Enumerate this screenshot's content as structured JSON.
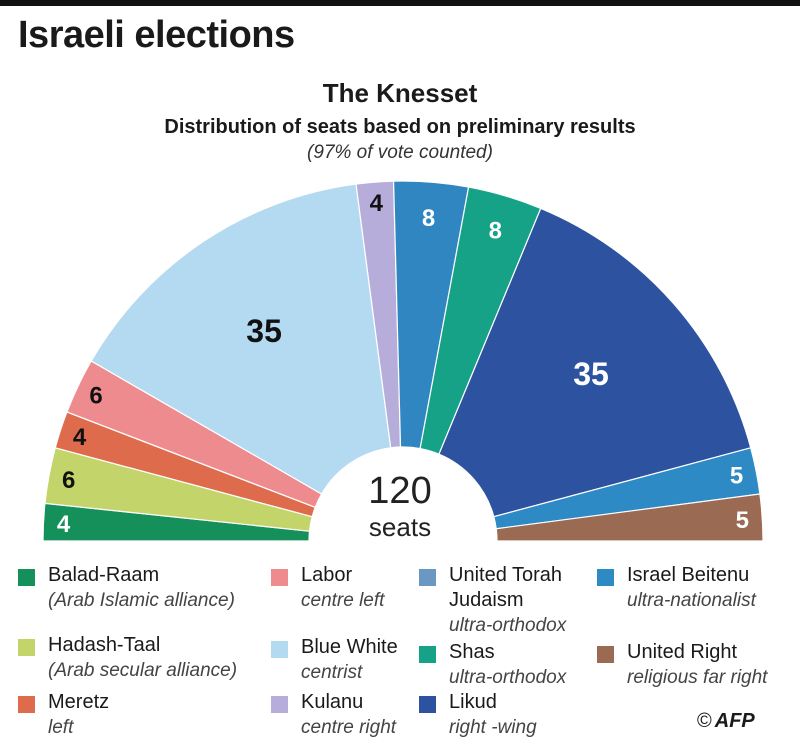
{
  "header": {
    "title": "Israeli elections"
  },
  "chart_data": {
    "type": "pie",
    "shape": "semicircle",
    "title": "The Knesset",
    "subtitle": "Distribution of seats based on preliminary results",
    "note": "(97% of vote counted)",
    "total_label": "120",
    "total_unit": "seats",
    "total": 120,
    "order": "counter-clockwise from left",
    "series": [
      {
        "name": "Balad-Raam",
        "desc": "(Arab Islamic alliance)",
        "value": 4,
        "color": "#15905a",
        "label_color": "#ffffff"
      },
      {
        "name": "Hadash-Taal",
        "desc": "(Arab secular alliance)",
        "value": 6,
        "color": "#c3d46a",
        "label_color": "#111111"
      },
      {
        "name": "Meretz",
        "desc": "left",
        "value": 4,
        "color": "#df6b4d",
        "label_color": "#111111"
      },
      {
        "name": "Labor",
        "desc": "centre left",
        "value": 6,
        "color": "#ee8b8e",
        "label_color": "#111111"
      },
      {
        "name": "Blue White",
        "desc": "centrist",
        "value": 35,
        "color": "#b4daf1",
        "label_color": "#111111"
      },
      {
        "name": "Kulanu",
        "desc": "centre right",
        "value": 4,
        "color": "#b7addb",
        "label_color": "#111111"
      },
      {
        "name": "United Torah Judaism",
        "desc": "ultra-orthodox",
        "value": 8,
        "color": "#2f86c1",
        "label_color": "#ffffff"
      },
      {
        "name": "Shas",
        "desc": "ultra-orthodox",
        "value": 8,
        "color": "#15a287",
        "label_color": "#ffffff"
      },
      {
        "name": "Likud",
        "desc": "right -wing",
        "value": 35,
        "color": "#2c52a0",
        "label_color": "#ffffff"
      },
      {
        "name": "Israel Beitenu",
        "desc": "ultra-nationalist",
        "value": 5,
        "color": "#2e8ac4",
        "label_color": "#ffffff"
      },
      {
        "name": "United Right",
        "desc": "religious far right",
        "value": 5,
        "color": "#9a6a52",
        "label_color": "#ffffff"
      }
    ],
    "legend_swatches": {
      "United Torah Judaism": "#6b98c2"
    }
  },
  "credit": {
    "symbol": "©",
    "text": "AFP"
  }
}
